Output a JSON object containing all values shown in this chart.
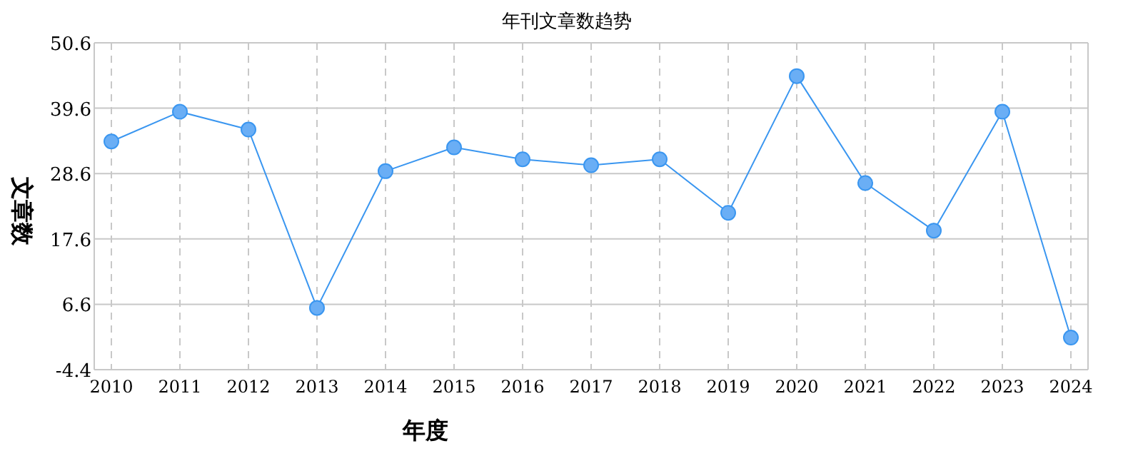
{
  "chart_data": {
    "type": "line",
    "title": "年刊文章数趋势",
    "xlabel": "年度",
    "ylabel": "文章数",
    "categories": [
      "2010",
      "2011",
      "2012",
      "2013",
      "2014",
      "2015",
      "2016",
      "2017",
      "2018",
      "2019",
      "2020",
      "2021",
      "2022",
      "2023",
      "2024"
    ],
    "series": [
      {
        "color": "#3a96f0",
        "values": [
          34,
          39,
          36,
          6,
          29,
          33,
          31,
          30,
          31,
          22,
          45,
          27,
          19,
          39,
          1
        ]
      }
    ],
    "ylim": [
      -4.4,
      50.6
    ],
    "yticks": [
      -4.4,
      6.6,
      17.6,
      28.6,
      39.6,
      50.6
    ],
    "grid": true,
    "marker": "circle",
    "line_style": "solid"
  }
}
